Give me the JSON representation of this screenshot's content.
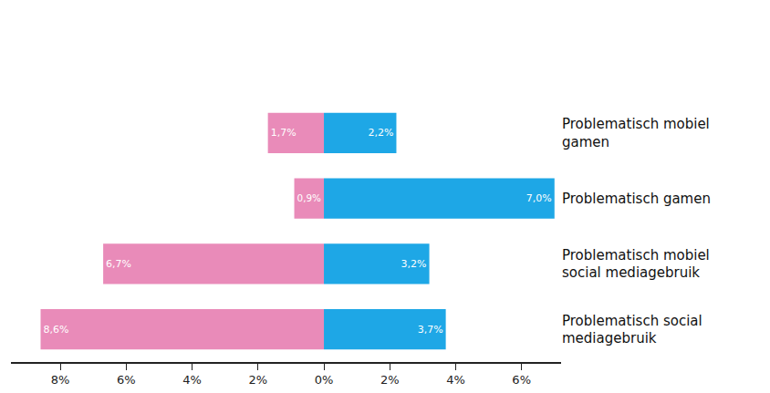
{
  "chart_data": [
    {
      "type": "bar",
      "orientation": "horizontal",
      "categories": [
        "Problematisch mobiel gamen",
        "Problematisch gamen",
        "Problematisch mobiel social mediagebruik",
        "Problematisch social mediagebruik"
      ],
      "series": [
        {
          "color": "#e98bb9",
          "values": [
            1.7,
            0.9,
            6.7,
            8.6
          ],
          "value_labels": [
            "1,7%",
            "0,9%",
            "6,7%",
            "8,6%"
          ]
        }
      ],
      "xlim": [
        9.5,
        0
      ],
      "xticks": [
        {
          "value": 8,
          "label": "8%"
        },
        {
          "value": 6,
          "label": "6%"
        },
        {
          "value": 4,
          "label": "4%"
        },
        {
          "value": 2,
          "label": "2%"
        }
      ],
      "data_labels": true,
      "tick_labels": "x",
      "grid": false
    },
    {
      "type": "bar",
      "orientation": "horizontal",
      "categories": [
        "Problematisch mobiel gamen",
        "Problematisch gamen",
        "Problematisch mobiel social mediagebruik",
        "Problematisch social mediagebruik"
      ],
      "series": [
        {
          "color": "#1ea7e6",
          "values": [
            2.2,
            7.0,
            3.2,
            3.7
          ],
          "value_labels": [
            "2,2%",
            "7,0%",
            "3,2%",
            "3,7%"
          ]
        }
      ],
      "xlim": [
        0,
        7.2
      ],
      "xticks": [
        {
          "value": 0,
          "label": "0%"
        },
        {
          "value": 2,
          "label": "2%"
        },
        {
          "value": 4,
          "label": "4%"
        },
        {
          "value": 6,
          "label": "6%"
        }
      ],
      "data_labels": true,
      "grid": false
    }
  ]
}
